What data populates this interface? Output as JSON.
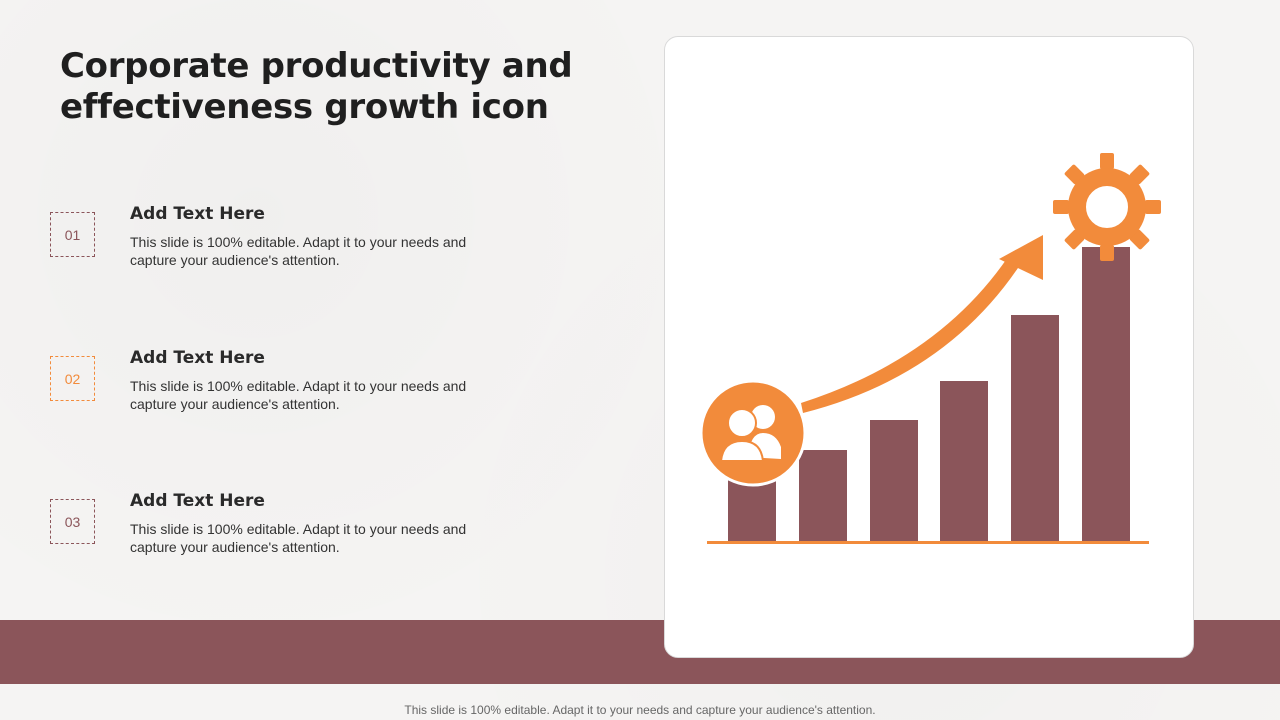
{
  "title": "Corporate productivity and effectiveness growth icon",
  "items": [
    {
      "number": "01",
      "heading": "Add Text Here",
      "text": "This slide is 100% editable.  Adapt it to your needs and capture your audience's attention."
    },
    {
      "number": "02",
      "heading": "Add Text Here",
      "text": "This slide is 100% editable.  Adapt it to your needs and capture your audience's attention."
    },
    {
      "number": "03",
      "heading": "Add Text Here",
      "text": "This slide is 100% editable.  Adapt it to your needs and capture your audience's attention."
    }
  ],
  "footer": "This slide is 100% editable. Adapt it to your needs and capture your audience's attention.",
  "colors": {
    "maroon": "#8b555a",
    "orange": "#f28b3b"
  },
  "illustration": {
    "icons": [
      "people-icon",
      "gear-icon",
      "growth-arrow-icon"
    ]
  }
}
